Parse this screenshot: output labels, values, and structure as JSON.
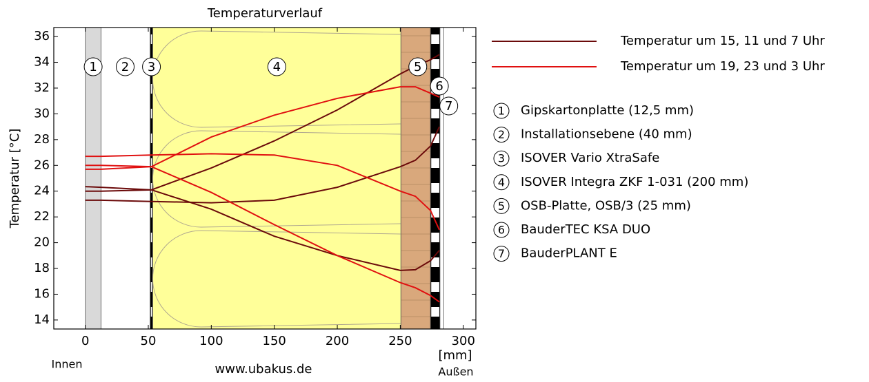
{
  "chart_data": {
    "type": "line",
    "title": "Temperaturverlauf",
    "y_label": "Temperatur [°C]",
    "x_label": "[mm]",
    "inside_label": "Innen",
    "outside_label": "Außen",
    "source": "www.ubakus.de",
    "xlim": [
      -25,
      310
    ],
    "ylim": [
      13.3,
      36.7
    ],
    "xticks": [
      0,
      50,
      100,
      150,
      200,
      250,
      300
    ],
    "yticks": [
      14,
      16,
      18,
      20,
      22,
      24,
      26,
      28,
      30,
      32,
      34,
      36
    ],
    "grid": false,
    "legend": "right",
    "layers": [
      {
        "label": "1",
        "name": "Gipskartonplatte (12,5 mm)",
        "start": 0,
        "end": 12.5,
        "color": "#d9d9d9"
      },
      {
        "label": "2",
        "name": "Installationsebene (40 mm)",
        "start": 12.5,
        "end": 51.5,
        "color": "#ffffff"
      },
      {
        "label": "3",
        "name": "ISOVER Vario XtraSafe",
        "start": 51.5,
        "end": 53.5,
        "color": "#000000"
      },
      {
        "label": "4",
        "name": "ISOVER Integra ZKF 1-031 (200 mm)",
        "start": 53.5,
        "end": 250.5,
        "color": "#ffff99"
      },
      {
        "label": "5",
        "name": "OSB-Platte, OSB/3 (25 mm)",
        "start": 250.5,
        "end": 274,
        "color": "#d9a87c"
      },
      {
        "label": "6",
        "name": "BauderTEC KSA DUO",
        "start": 274,
        "end": 281.5,
        "color": "#000000"
      },
      {
        "label": "7",
        "name": "BauderPLANT E",
        "start": 281.5,
        "end": 284.5,
        "color": "#ffffff"
      }
    ],
    "x": [
      0,
      12.5,
      52.5,
      100,
      150,
      200,
      250,
      262,
      274,
      281
    ],
    "series": [
      {
        "name": "Temperatur um 15, 11 und 7 Uhr",
        "color": "#6b0a0a",
        "curves": [
          {
            "values": [
              23.3,
              23.3,
              23.2,
              23.1,
              23.3,
              24.3,
              25.9,
              26.4,
              27.5,
              29.0
            ]
          },
          {
            "values": [
              24.35,
              24.3,
              24.1,
              22.6,
              20.5,
              19.0,
              17.85,
              17.9,
              18.6,
              19.4
            ]
          },
          {
            "values": [
              24.0,
              24.0,
              24.1,
              25.8,
              27.9,
              30.3,
              33.1,
              33.7,
              34.2,
              34.6
            ]
          }
        ]
      },
      {
        "name": "Temperatur um 19, 23 und 3 Uhr",
        "color": "#e01010",
        "curves": [
          {
            "values": [
              25.7,
              25.7,
              25.9,
              28.2,
              29.9,
              31.2,
              32.1,
              32.1,
              31.6,
              31.3
            ]
          },
          {
            "values": [
              26.7,
              26.7,
              26.8,
              26.9,
              26.8,
              26.0,
              24.0,
              23.6,
              22.5,
              21.0
            ]
          },
          {
            "values": [
              26.0,
              26.0,
              25.9,
              23.9,
              21.4,
              19.0,
              16.9,
              16.5,
              15.9,
              15.4
            ]
          }
        ]
      }
    ]
  }
}
